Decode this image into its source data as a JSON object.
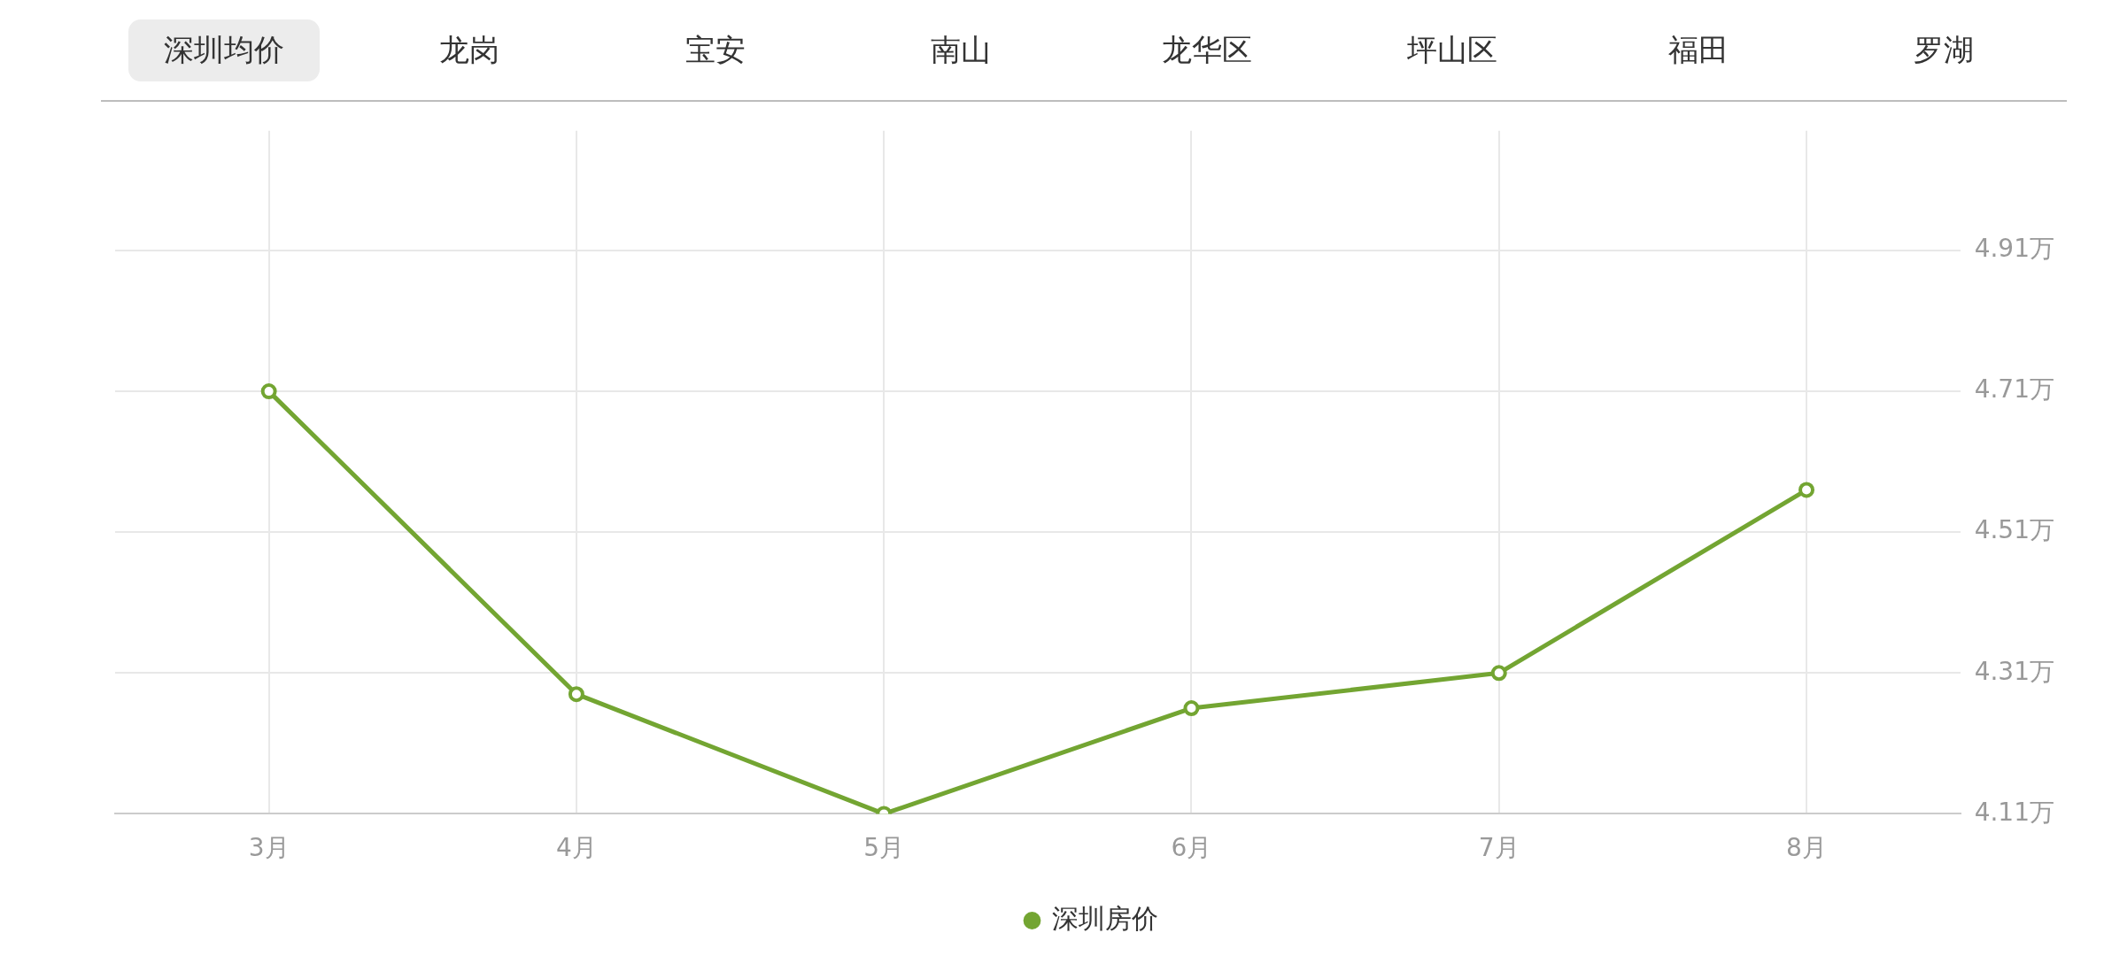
{
  "chart_data": {
    "type": "line",
    "categories": [
      "3月",
      "4月",
      "5月",
      "6月",
      "7月",
      "8月"
    ],
    "series": [
      {
        "name": "深圳房价",
        "color": "#73a532",
        "values": [
          4.71,
          4.28,
          4.11,
          4.26,
          4.31,
          4.57
        ]
      }
    ],
    "ylim": [
      4.11,
      5.08
    ],
    "yticks": [
      {
        "value": 4.11,
        "label": "4.11万"
      },
      {
        "value": 4.31,
        "label": "4.31万"
      },
      {
        "value": 4.51,
        "label": "4.51万"
      },
      {
        "value": 4.71,
        "label": "4.71万"
      },
      {
        "value": 4.91,
        "label": "4.91万"
      }
    ],
    "grid": true,
    "legend": "bottom",
    "marker": "circle",
    "line_style": "solid",
    "annotations": [
      "深圳均价",
      "龙岗",
      "宝安",
      "南山",
      "龙华区",
      "坪山区",
      "福田",
      "罗湖"
    ]
  }
}
